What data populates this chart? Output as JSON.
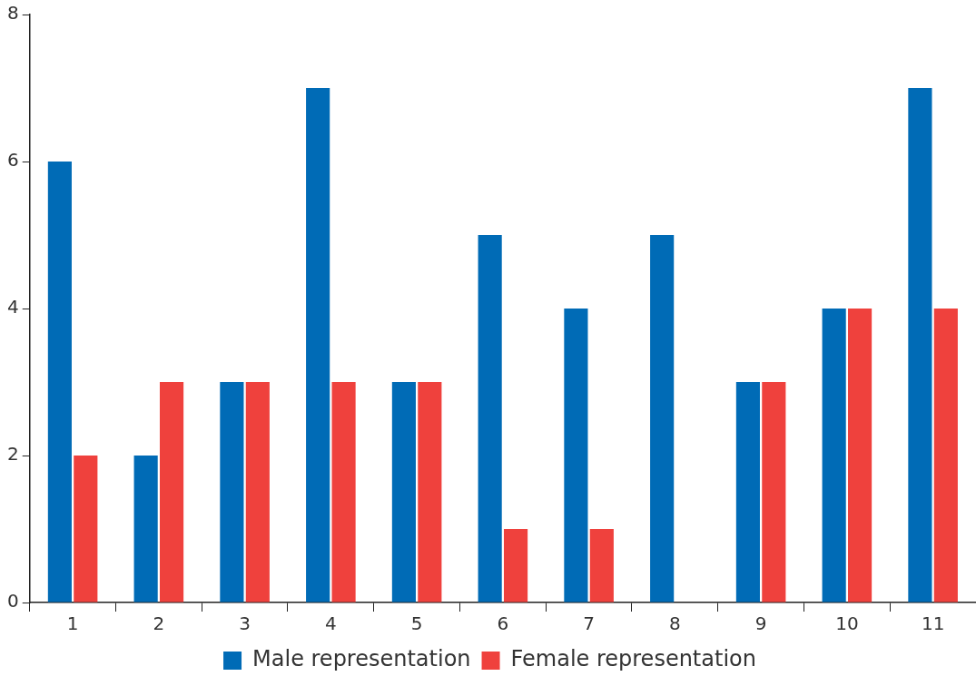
{
  "chart_data": {
    "type": "bar",
    "categories": [
      "1",
      "2",
      "3",
      "4",
      "5",
      "6",
      "7",
      "8",
      "9",
      "10",
      "11"
    ],
    "series": [
      {
        "name": "Male representation",
        "color": "#006bb6",
        "values": [
          6,
          2,
          3,
          7,
          3,
          5,
          4,
          5,
          3,
          4,
          7
        ]
      },
      {
        "name": "Female representation",
        "color": "#ef413d",
        "values": [
          2,
          3,
          3,
          3,
          3,
          1,
          1,
          0,
          3,
          4,
          4
        ]
      }
    ],
    "ylim": [
      0,
      8
    ],
    "yticks": [
      0,
      2,
      4,
      6,
      8
    ],
    "grid": false,
    "legend": "bottom"
  }
}
